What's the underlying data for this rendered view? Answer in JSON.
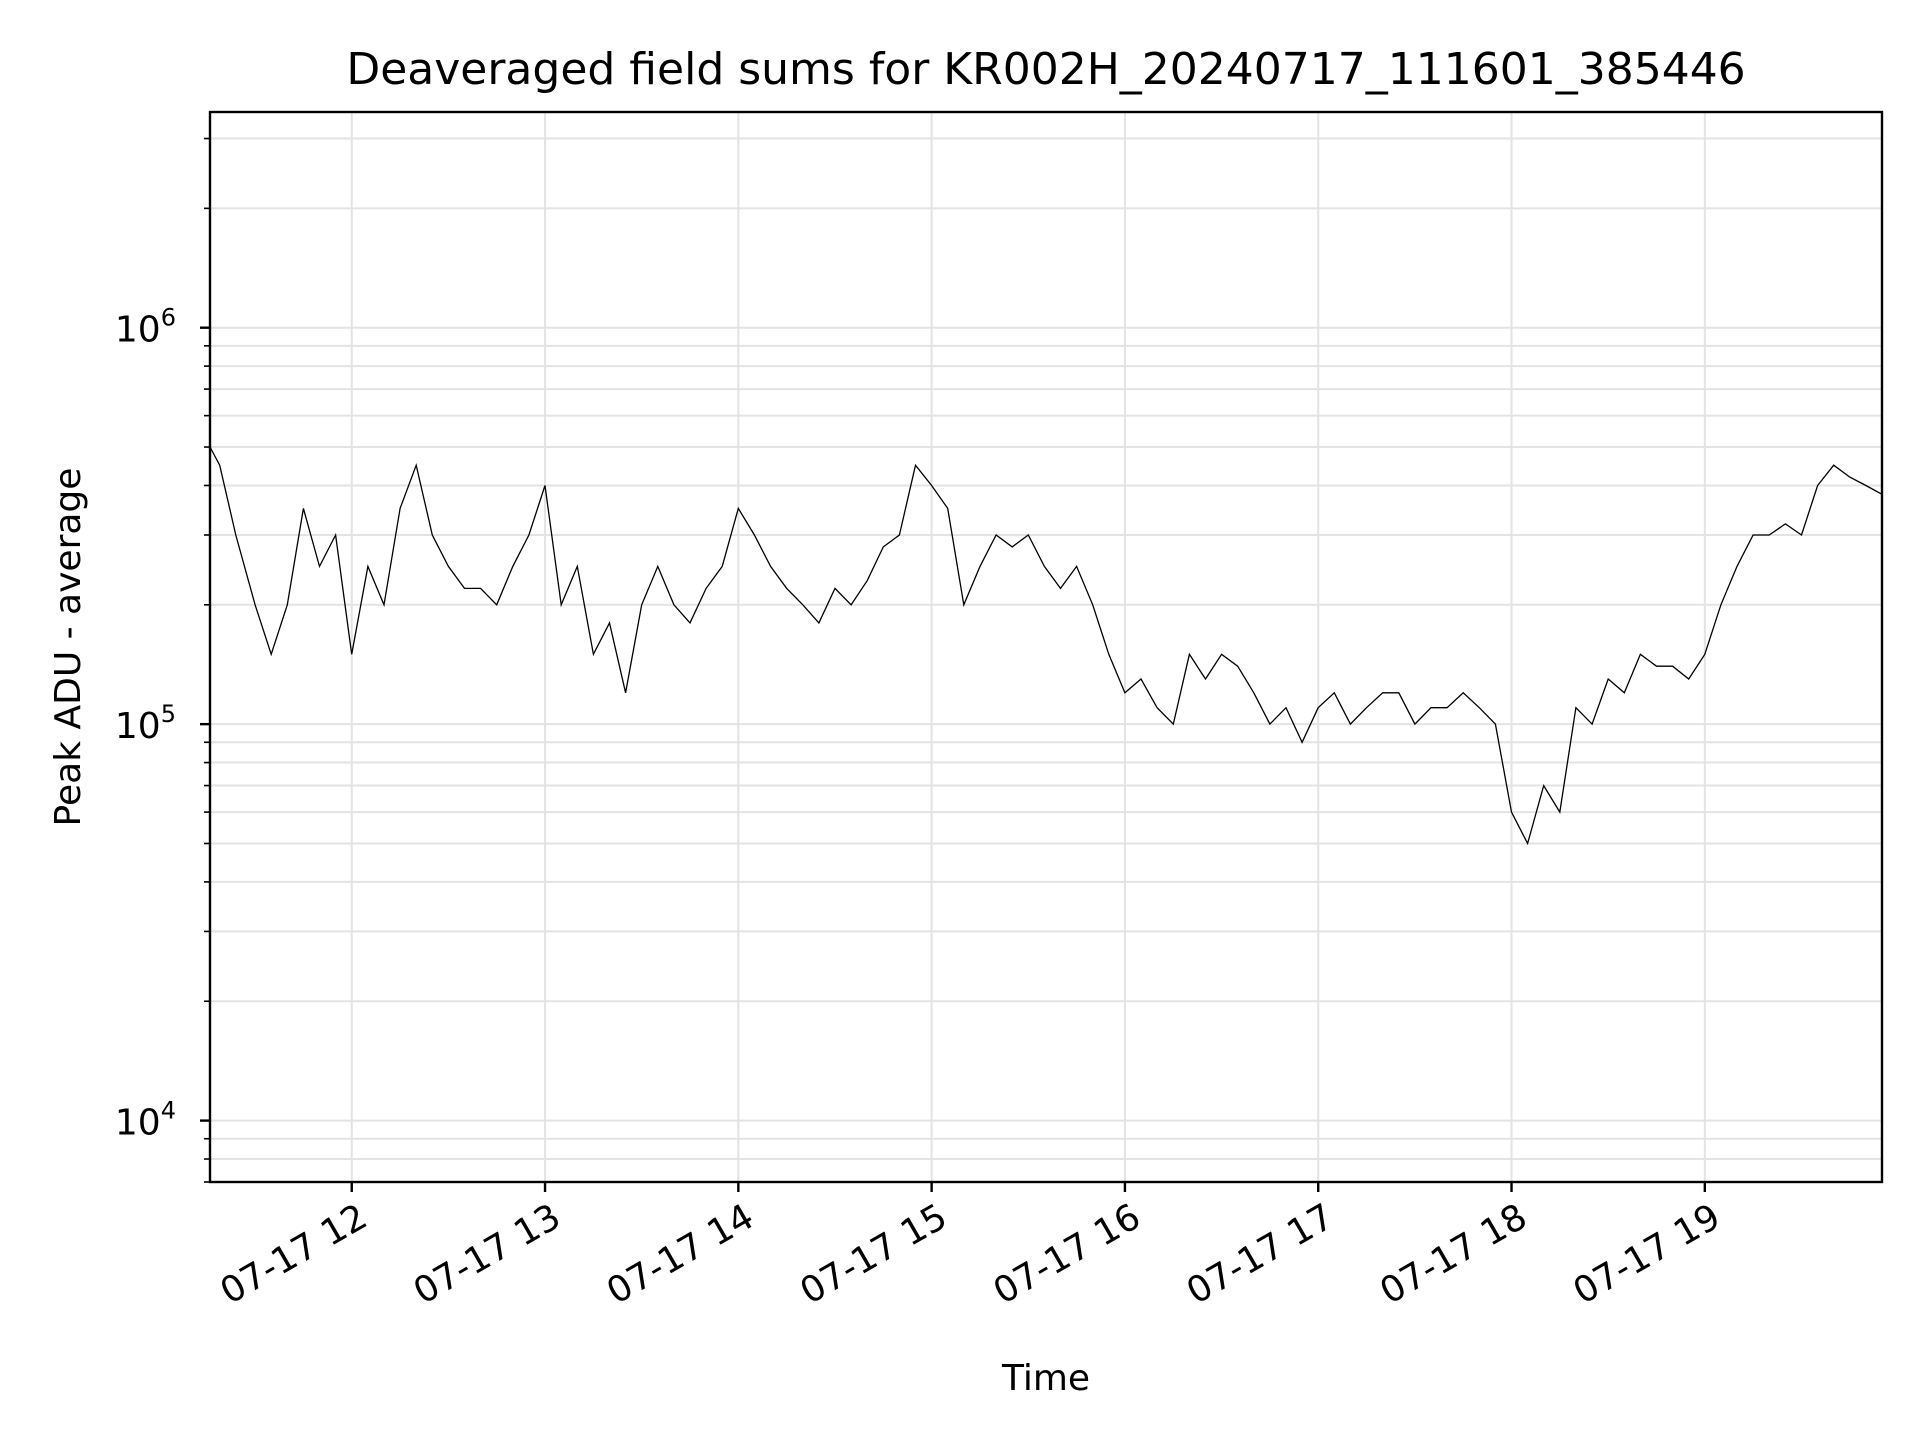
{
  "chart_data": {
    "type": "line",
    "title": "Deaveraged field sums for KR002H_20240717_111601_385446",
    "xlabel": "Time",
    "ylabel": "Peak ADU - average",
    "yscale": "log",
    "ylim": [
      7000,
      3500000
    ],
    "xlim": [
      "2024-07-17 11:16",
      "2024-07-17 19:55"
    ],
    "x_ticks": [
      {
        "time": "2024-07-17 12:00",
        "label": "07-17 12"
      },
      {
        "time": "2024-07-17 13:00",
        "label": "07-17 13"
      },
      {
        "time": "2024-07-17 14:00",
        "label": "07-17 14"
      },
      {
        "time": "2024-07-17 15:00",
        "label": "07-17 15"
      },
      {
        "time": "2024-07-17 16:00",
        "label": "07-17 16"
      },
      {
        "time": "2024-07-17 17:00",
        "label": "07-17 17"
      },
      {
        "time": "2024-07-17 18:00",
        "label": "07-17 18"
      },
      {
        "time": "2024-07-17 19:00",
        "label": "07-17 19"
      }
    ],
    "y_ticks": [
      {
        "value": 10000,
        "base": "10",
        "exp": "4"
      },
      {
        "value": 100000,
        "base": "10",
        "exp": "5"
      },
      {
        "value": 1000000,
        "base": "10",
        "exp": "6"
      }
    ],
    "grid": true,
    "line_color": "#000000",
    "series": [
      {
        "x": [
          "11:16",
          "11:19",
          "11:24",
          "11:30",
          "11:35",
          "11:40",
          "11:45",
          "11:50",
          "11:55",
          "12:00",
          "12:05",
          "12:10",
          "12:15",
          "12:20",
          "12:25",
          "12:30",
          "12:35",
          "12:40",
          "12:45",
          "12:50",
          "12:55",
          "13:00",
          "13:05",
          "13:10",
          "13:15",
          "13:20",
          "13:25",
          "13:30",
          "13:35",
          "13:40",
          "13:45",
          "13:50",
          "13:55",
          "14:00",
          "14:05",
          "14:10",
          "14:15",
          "14:20",
          "14:25",
          "14:30",
          "14:35",
          "14:40",
          "14:45",
          "14:50",
          "14:55",
          "15:00",
          "15:05",
          "15:10",
          "15:15",
          "15:20",
          "15:25",
          "15:30",
          "15:35",
          "15:40",
          "15:45",
          "15:50",
          "15:55",
          "16:00",
          "16:05",
          "16:10",
          "16:15",
          "16:20",
          "16:25",
          "16:30",
          "16:35",
          "16:40",
          "16:45",
          "16:50",
          "16:55",
          "17:00",
          "17:05",
          "17:10",
          "17:15",
          "17:20",
          "17:25",
          "17:30",
          "17:35",
          "17:40",
          "17:45",
          "17:50",
          "17:55",
          "18:00",
          "18:05",
          "18:10",
          "18:15",
          "18:20",
          "18:25",
          "18:30",
          "18:35",
          "18:40",
          "18:45",
          "18:50",
          "18:55",
          "19:00",
          "19:05",
          "19:10",
          "19:15",
          "19:20",
          "19:25",
          "19:30",
          "19:35",
          "19:40",
          "19:45",
          "19:50",
          "19:55"
        ],
        "y": [
          500000,
          450000,
          300000,
          200000,
          150000,
          200000,
          350000,
          250000,
          300000,
          150000,
          250000,
          200000,
          350000,
          450000,
          300000,
          250000,
          220000,
          220000,
          200000,
          250000,
          300000,
          400000,
          200000,
          250000,
          150000,
          180000,
          120000,
          200000,
          250000,
          200000,
          180000,
          220000,
          250000,
          350000,
          300000,
          250000,
          220000,
          200000,
          180000,
          220000,
          200000,
          230000,
          280000,
          300000,
          450000,
          400000,
          350000,
          200000,
          250000,
          300000,
          280000,
          300000,
          250000,
          220000,
          250000,
          200000,
          150000,
          120000,
          130000,
          110000,
          100000,
          150000,
          130000,
          150000,
          140000,
          120000,
          100000,
          110000,
          90000,
          110000,
          120000,
          100000,
          110000,
          120000,
          120000,
          100000,
          110000,
          110000,
          120000,
          110000,
          100000,
          60000,
          50000,
          70000,
          60000,
          110000,
          100000,
          130000,
          120000,
          150000,
          140000,
          140000,
          130000,
          150000,
          200000,
          250000,
          300000,
          300000,
          320000,
          300000,
          400000,
          450000,
          420000,
          400000,
          380000
        ]
      }
    ]
  }
}
